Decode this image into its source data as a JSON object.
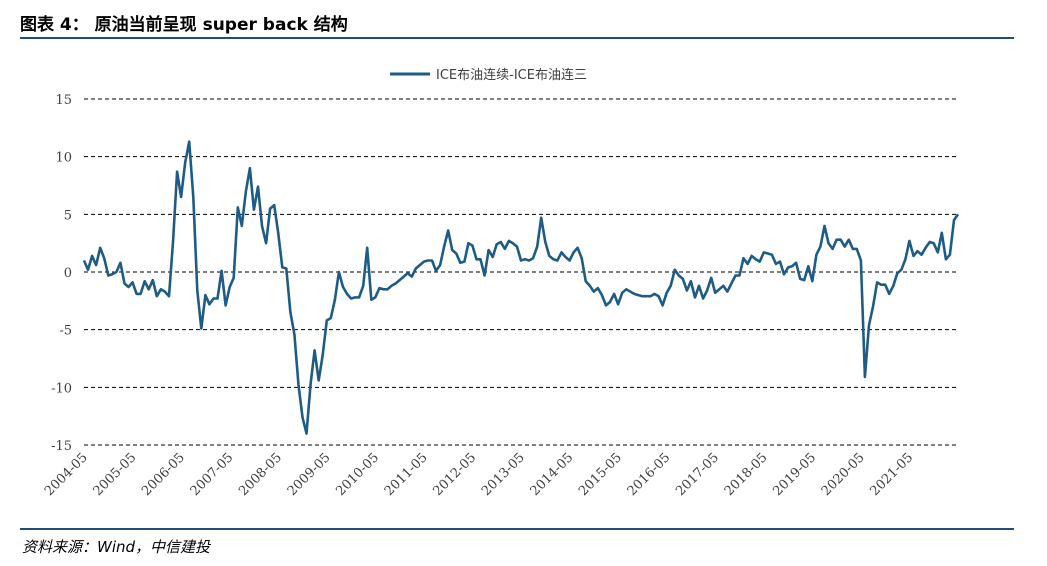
{
  "header": {
    "title": "图表 4：  原油当前呈现 super back 结构"
  },
  "footer": {
    "source": "资料来源：Wind，中信建投"
  },
  "colors": {
    "series": "#1f5c85",
    "rule": "#1f4e79",
    "grid": "#000000"
  },
  "chart_data": {
    "type": "line",
    "title": "",
    "xlabel": "",
    "ylabel": "",
    "ylim": [
      -15,
      15
    ],
    "yticks": [
      15,
      10,
      5,
      0,
      -5,
      -10,
      -15
    ],
    "x_tick_labels": [
      "2004-05",
      "2005-05",
      "2006-05",
      "2007-05",
      "2008-05",
      "2009-05",
      "2010-05",
      "2011-05",
      "2012-05",
      "2013-05",
      "2014-05",
      "2015-05",
      "2016-05",
      "2017-05",
      "2018-05",
      "2019-05",
      "2020-05",
      "2021-05"
    ],
    "x_start": "2004-05",
    "grid": "horizontal dashed",
    "legend_position": "top-center",
    "series": [
      {
        "name": "ICE布油连续-ICE布油连三",
        "values": [
          1.0,
          0.2,
          1.4,
          0.6,
          2.1,
          1.2,
          -0.3,
          -0.2,
          0.0,
          0.8,
          -1.0,
          -1.3,
          -0.9,
          -1.9,
          -1.9,
          -0.8,
          -1.5,
          -0.7,
          -2.1,
          -1.5,
          -1.7,
          -2.1,
          2.6,
          8.7,
          6.5,
          9.5,
          11.3,
          6.5,
          -1.6,
          -4.9,
          -2.0,
          -2.8,
          -2.3,
          -2.3,
          0.1,
          -2.9,
          -1.3,
          -0.5,
          5.6,
          4.0,
          7.0,
          9.0,
          5.4,
          7.4,
          4.0,
          2.5,
          5.5,
          5.8,
          3.4,
          0.4,
          0.3,
          -3.5,
          -5.4,
          -9.8,
          -12.6,
          -14.0,
          -9.7,
          -6.8,
          -9.4,
          -7.2,
          -4.2,
          -4.0,
          -2.4,
          0.0,
          -1.3,
          -1.9,
          -2.3,
          -2.2,
          -2.2,
          -1.2,
          2.1,
          -2.4,
          -2.2,
          -1.4,
          -1.5,
          -1.5,
          -1.2,
          -1.0,
          -0.7,
          -0.4,
          -0.1,
          -0.4,
          0.3,
          0.6,
          0.9,
          1.0,
          1.0,
          0.1,
          0.6,
          2.2,
          3.6,
          1.9,
          1.6,
          0.8,
          0.9,
          2.5,
          2.3,
          1.1,
          1.1,
          -0.3,
          1.9,
          1.3,
          2.4,
          2.6,
          2.0,
          2.7,
          2.5,
          2.2,
          1.0,
          1.1,
          1.0,
          1.2,
          2.2,
          4.7,
          2.6,
          1.4,
          1.1,
          1.0,
          1.7,
          1.3,
          1.0,
          1.7,
          2.1,
          1.2,
          -0.8,
          -1.2,
          -1.7,
          -1.4,
          -2.0,
          -2.9,
          -2.6,
          -1.9,
          -2.8,
          -1.8,
          -1.5,
          -1.7,
          -1.9,
          -2.0,
          -2.1,
          -2.1,
          -2.1,
          -1.9,
          -2.1,
          -2.9,
          -1.8,
          -1.2,
          0.2,
          -0.3,
          -0.6,
          -1.6,
          -0.8,
          -2.2,
          -1.2,
          -2.3,
          -1.6,
          -0.5,
          -1.8,
          -1.5,
          -1.2,
          -1.7,
          -1.0,
          -0.3,
          -0.3,
          1.2,
          0.7,
          1.4,
          1.1,
          0.9,
          1.7,
          1.6,
          1.5,
          0.7,
          0.9,
          -0.2,
          0.4,
          0.5,
          0.8,
          -0.6,
          -0.7,
          0.5,
          -0.8,
          1.5,
          2.2,
          4.0,
          2.5,
          2.0,
          2.8,
          2.8,
          2.2,
          2.8,
          2.0,
          2.0,
          1.0,
          -9.1,
          -4.6,
          -3.0,
          -0.9,
          -1.1,
          -1.1,
          -1.9,
          -1.2,
          -0.1,
          0.2,
          1.1,
          2.7,
          1.4,
          1.8,
          1.5,
          2.1,
          2.6,
          2.5,
          1.7,
          3.4,
          1.1,
          1.5,
          4.5,
          5.0
        ]
      }
    ]
  }
}
